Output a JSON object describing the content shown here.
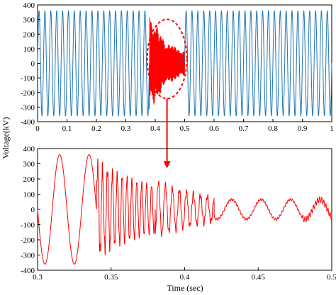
{
  "chart_data": [
    {
      "type": "line",
      "panel": "top",
      "title": "",
      "xlabel": "",
      "ylabel": "Voltage(kV)",
      "xlim": [
        0,
        1
      ],
      "ylim": [
        -400,
        400
      ],
      "xticks": [
        "0",
        "0.1",
        "0.2",
        "0.3",
        "0.4",
        "0.5",
        "0.6",
        "0.7",
        "0.8",
        "0.9",
        "1"
      ],
      "yticks": [
        "400",
        "300",
        "200",
        "100",
        "0",
        "-100",
        "-200",
        "-300",
        "-400"
      ],
      "grid": false,
      "series": [
        {
          "color": "#1f77b4",
          "description_segments": [
            {
              "x_start": 0.0,
              "x_end": 0.38,
              "kind": "sinusoid",
              "amplitude_kV": 360,
              "frequency_hz": 50
            },
            {
              "x_start": 0.38,
              "x_end": 0.5,
              "kind": "transient",
              "color": "#ff0000"
            },
            {
              "x_start": 0.5,
              "x_end": 1.0,
              "kind": "sinusoid",
              "amplitude_kV": 360,
              "frequency_hz": 50
            }
          ]
        }
      ],
      "annotation": {
        "type": "dashed-ellipse",
        "color": "#ff0000",
        "center_x": 0.44,
        "center_y": 30
      }
    },
    {
      "type": "line",
      "panel": "bottom",
      "title": "",
      "xlabel": "Time (sec)",
      "ylabel": "",
      "xlim": [
        0.3,
        0.5
      ],
      "ylim": [
        -400,
        400
      ],
      "xticks": [
        "0.3",
        "0.35",
        "0.4",
        "0.45",
        "0.5"
      ],
      "yticks": [
        "400",
        "300",
        "200",
        "100",
        "0",
        "-100",
        "-200",
        "-300",
        "-400"
      ],
      "grid": false,
      "series": [
        {
          "color": "#ff0000",
          "envelope_points": [
            {
              "x": 0.3,
              "y": 0
            },
            {
              "x": 0.305,
              "y": -360
            },
            {
              "x": 0.315,
              "y": 360
            },
            {
              "x": 0.325,
              "y": -360
            },
            {
              "x": 0.335,
              "y": 340
            },
            {
              "x": 0.36,
              "y": 220
            },
            {
              "x": 0.38,
              "y": 190
            },
            {
              "x": 0.4,
              "y": 120
            },
            {
              "x": 0.42,
              "y": 60
            },
            {
              "x": 0.45,
              "y": 60
            },
            {
              "x": 0.5,
              "y": 60
            }
          ]
        }
      ]
    }
  ]
}
